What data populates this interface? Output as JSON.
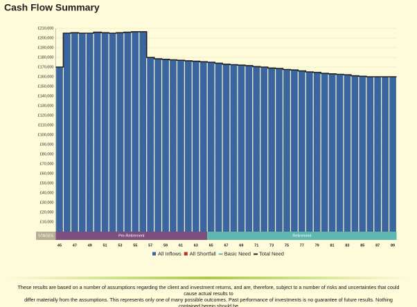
{
  "chart_data": {
    "type": "bar",
    "title": "Cash Flow Summary",
    "x": [
      45,
      46,
      47,
      48,
      49,
      50,
      51,
      52,
      53,
      54,
      55,
      56,
      57,
      58,
      59,
      60,
      61,
      62,
      63,
      64,
      65,
      66,
      67,
      68,
      69,
      70,
      71,
      72,
      73,
      74,
      75,
      76,
      77,
      78,
      79,
      80,
      81,
      82,
      83,
      84,
      85,
      86,
      87,
      88,
      89
    ],
    "series": [
      {
        "name": "All Inflows",
        "color": "#3b659e",
        "values": [
          170000,
          205000,
          205500,
          205000,
          205000,
          206000,
          205500,
          205000,
          205500,
          206000,
          206500,
          206500,
          180000,
          178500,
          178000,
          177500,
          177000,
          176500,
          176000,
          175500,
          175000,
          174000,
          173000,
          172500,
          172000,
          171500,
          170500,
          170000,
          169000,
          168500,
          167500,
          167000,
          166000,
          165000,
          164500,
          163500,
          163000,
          162500,
          162000,
          161000,
          160500,
          160000,
          160000,
          160000,
          160000
        ]
      },
      {
        "name": "Total Need",
        "color": "#222222",
        "values": [
          170000,
          205000,
          205500,
          205000,
          205000,
          206000,
          205500,
          205000,
          205500,
          206000,
          206500,
          206500,
          180000,
          178500,
          178000,
          177500,
          177000,
          176500,
          176000,
          175500,
          175000,
          174000,
          173000,
          172500,
          172000,
          171500,
          170500,
          170000,
          169000,
          168500,
          167500,
          167000,
          166000,
          165000,
          164500,
          163500,
          163000,
          162500,
          162000,
          161000,
          160500,
          160000,
          160000,
          160000,
          160000
        ]
      }
    ],
    "legend": [
      {
        "name": "All Inflows",
        "color": "#3b659e"
      },
      {
        "name": "All Shortfall",
        "color": "#c0302a"
      },
      {
        "name": "Basic Need",
        "color": "#5fb8b0"
      },
      {
        "name": "Total Need",
        "color": "#222222"
      }
    ],
    "xlim": [
      44.5,
      89.5
    ],
    "xticks": [
      45,
      47,
      49,
      51,
      53,
      55,
      57,
      59,
      61,
      63,
      65,
      67,
      69,
      71,
      73,
      75,
      77,
      79,
      81,
      83,
      85,
      87,
      89
    ],
    "ylim": [
      0,
      210000
    ],
    "yticks": [
      {
        "value": 10000,
        "label": "£10,000"
      },
      {
        "value": 20000,
        "label": "£20,000"
      },
      {
        "value": 30000,
        "label": "£30,000"
      },
      {
        "value": 40000,
        "label": "£40,000"
      },
      {
        "value": 50000,
        "label": "£50,000"
      },
      {
        "value": 60000,
        "label": "£60,000"
      },
      {
        "value": 70000,
        "label": "£70,000"
      },
      {
        "value": 80000,
        "label": "£80,000"
      },
      {
        "value": 90000,
        "label": "£90,000"
      },
      {
        "value": 100000,
        "label": "£100,000"
      },
      {
        "value": 110000,
        "label": "£110,000"
      },
      {
        "value": 120000,
        "label": "£120,000"
      },
      {
        "value": 130000,
        "label": "£130,000"
      },
      {
        "value": 140000,
        "label": "£140,000"
      },
      {
        "value": 150000,
        "label": "£150,000"
      },
      {
        "value": 160000,
        "label": "£160,000"
      },
      {
        "value": 170000,
        "label": "£170,000"
      },
      {
        "value": 180000,
        "label": "£180,000"
      },
      {
        "value": 190000,
        "label": "£190,000"
      },
      {
        "value": 200000,
        "label": "£200,000"
      },
      {
        "value": 210000,
        "label": "£210,000"
      }
    ],
    "grid": true,
    "stages": {
      "label": "STAGES",
      "items": [
        {
          "name": "Pre-Retirement",
          "start": 45,
          "end": 64,
          "color": "#7c4f7e"
        },
        {
          "name": "Retirement",
          "start": 65,
          "end": 89,
          "color": "#5fb8b0"
        }
      ]
    },
    "footer": [
      "These results are based on a number of assumptions regarding the client and investment returns, and are, therefore, subject to a number of risks and uncertainties that could cause actual results to",
      "differ materially from the assumptions. This represents only one of many possible outcomes. Past performance of investments is no guarantee of future results. Nothing contained herein should be",
      "construed as an offer to sell or as an offer to buy securities. Copyright © 2007-2019 Voyant, Inc."
    ]
  }
}
